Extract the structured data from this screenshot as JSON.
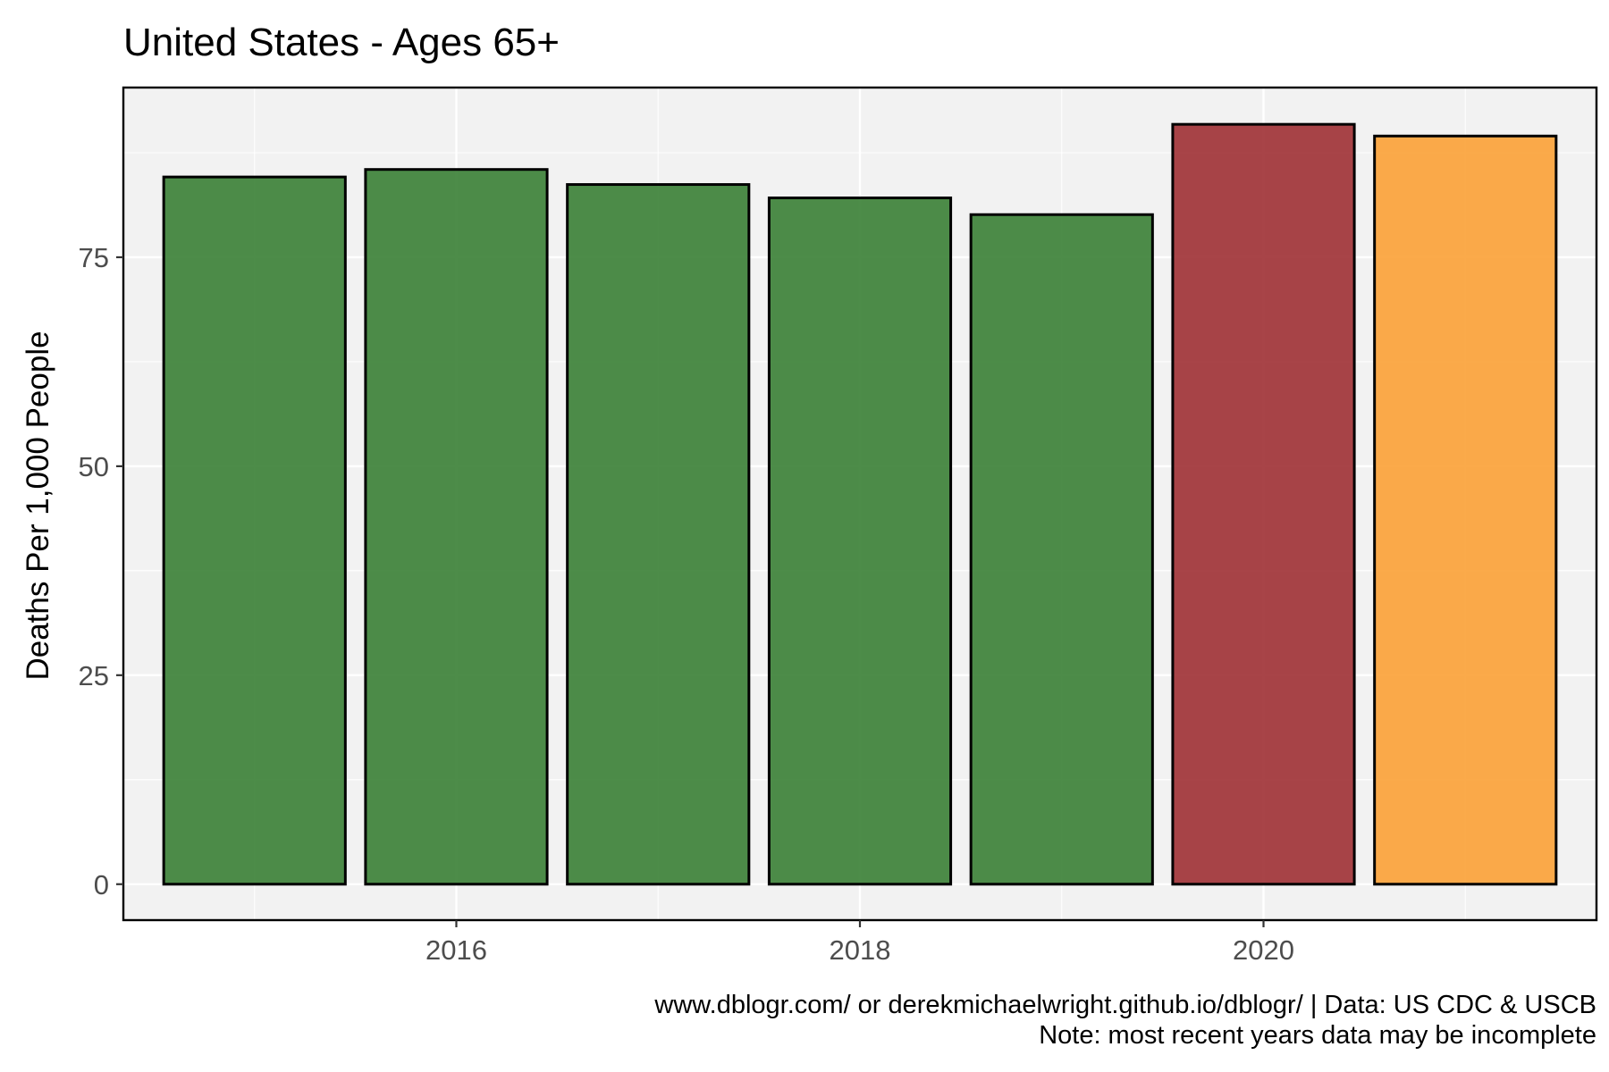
{
  "chart_data": {
    "type": "bar",
    "title": "United States - Ages 65+",
    "xlabel": "",
    "ylabel": "Deaths Per 1,000 People",
    "x": [
      2015,
      2016,
      2017,
      2018,
      2019,
      2020,
      2021
    ],
    "values": [
      84.6,
      85.5,
      83.7,
      82.1,
      80.1,
      90.9,
      89.5
    ],
    "bar_colors": [
      "#3a7f35",
      "#3a7f35",
      "#3a7f35",
      "#3a7f35",
      "#3a7f35",
      "#9e3034",
      "#fba136"
    ],
    "xlim": [
      2014.35,
      2021.65
    ],
    "ylim": [
      -4.3,
      95.3
    ],
    "x_ticks": [
      2016,
      2018,
      2020
    ],
    "y_ticks": [
      0,
      25,
      50,
      75
    ],
    "grid": true,
    "panel_background": "#f2f2f2",
    "bar_outline": "#000000",
    "caption": [
      "www.dblogr.com/ or derekmichaelwright.github.io/dblogr/ | Data: US CDC & USCB",
      "Note: most recent years data may be incomplete"
    ]
  }
}
